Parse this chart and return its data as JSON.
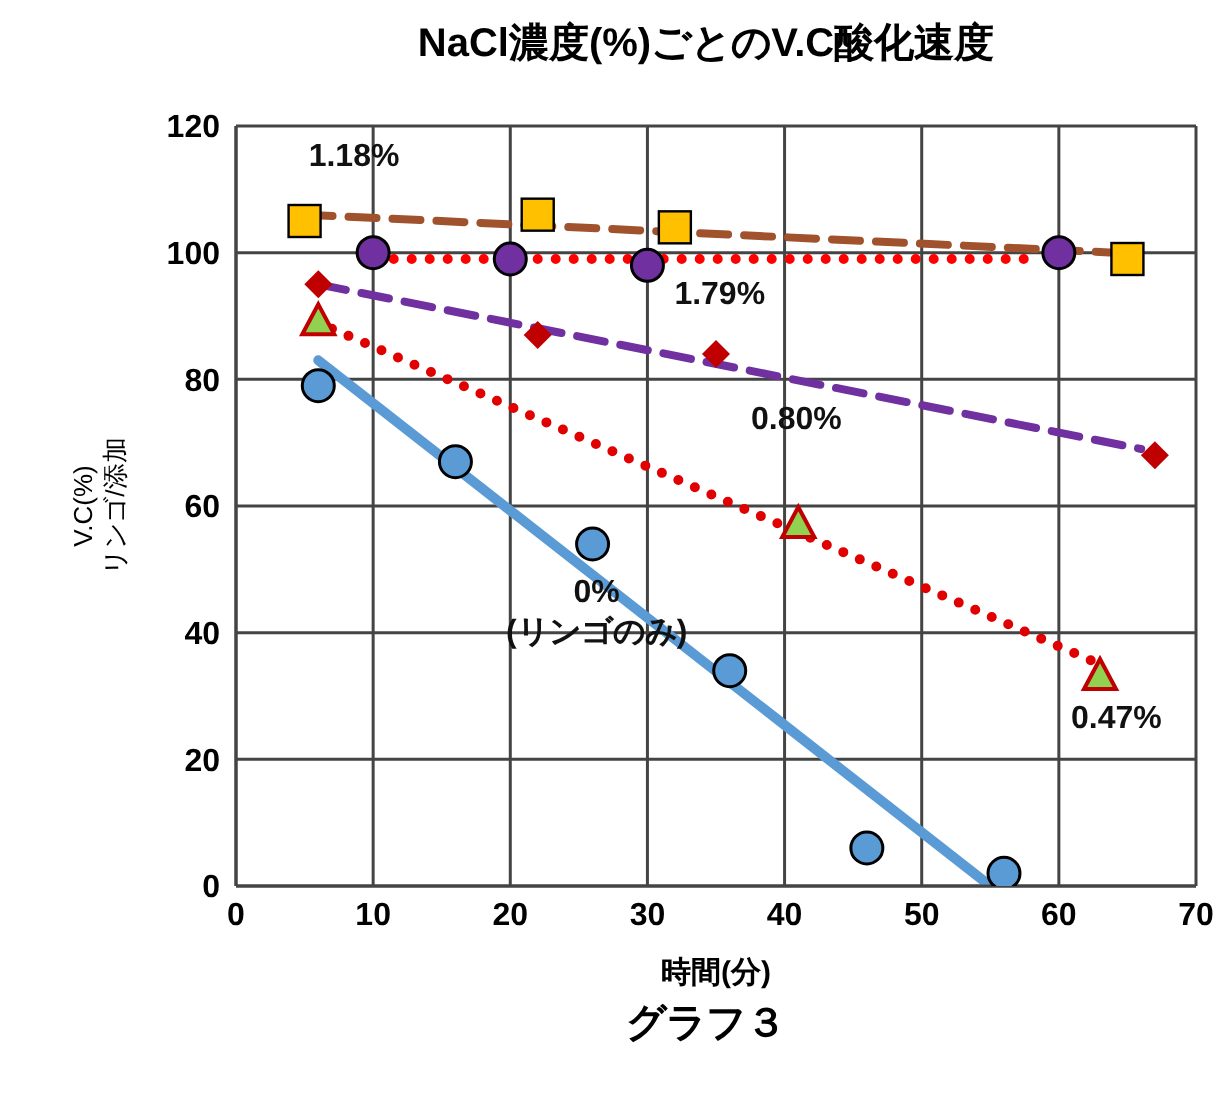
{
  "chart_data": {
    "type": "scatter",
    "title": "NaCl濃度(%)ごとのV.C酸化速度",
    "xlabel": "時間(分)",
    "ylabel": "V.C(%)\nリンゴ/添加",
    "xlim": [
      0,
      70
    ],
    "xticks": [
      0,
      10,
      20,
      30,
      40,
      50,
      60,
      70
    ],
    "ylim": [
      0,
      120
    ],
    "yticks": [
      0,
      20,
      40,
      60,
      80,
      100,
      120
    ],
    "grid": true,
    "legend": false,
    "annotations": [
      "グラフ３"
    ],
    "series": [
      {
        "name": "0%\n(リンゴのみ)",
        "marker": "circle",
        "color": "#5b9bd5",
        "x": [
          6,
          16,
          26,
          36,
          46,
          56
        ],
        "values": [
          79,
          67,
          54,
          34,
          6,
          2
        ]
      },
      {
        "name": "0.47%",
        "marker": "triangle",
        "color": "#92d050",
        "x": [
          6,
          41,
          63
        ],
        "values": [
          89,
          57,
          33
        ]
      },
      {
        "name": "0.80%",
        "marker": "diamond",
        "color": "#c00000",
        "x": [
          6,
          22,
          35,
          67
        ],
        "values": [
          95,
          87,
          84,
          68
        ]
      },
      {
        "name": "1.18%",
        "marker": "square",
        "color": "#ffc000",
        "x": [
          5,
          22,
          32,
          65
        ],
        "values": [
          105,
          106,
          104,
          99
        ]
      },
      {
        "name": "1.79%",
        "marker": "circle",
        "color": "#7030a0",
        "x": [
          10,
          20,
          30,
          60
        ],
        "values": [
          100,
          99,
          98,
          100
        ]
      },
      {
        "type": "line",
        "line_style": "solid",
        "color": "#5b9bd5",
        "x": [
          6,
          55
        ],
        "values": [
          83,
          0
        ]
      },
      {
        "type": "line",
        "line_style": "dotted",
        "color": "#e00000",
        "x": [
          7,
          63
        ],
        "values": [
          88,
          35
        ]
      },
      {
        "type": "line",
        "line_style": "dashed",
        "color": "#7030a0",
        "x": [
          6,
          66
        ],
        "values": [
          95,
          69
        ]
      },
      {
        "type": "line",
        "line_style": "dashed",
        "color": "#a0522d",
        "x": [
          5,
          64
        ],
        "values": [
          106,
          100
        ]
      },
      {
        "type": "line",
        "line_style": "dotted",
        "color": "#ff0000",
        "x": [
          11.5,
          58.5
        ],
        "values": [
          99,
          99
        ]
      }
    ]
  }
}
